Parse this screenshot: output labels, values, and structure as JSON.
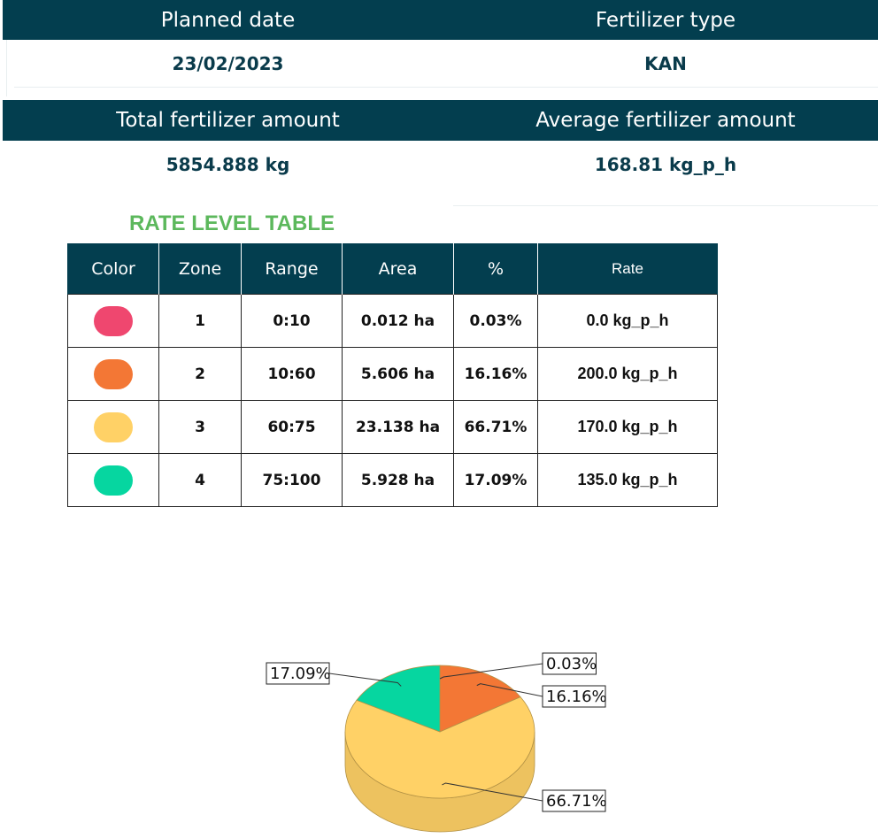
{
  "summary": {
    "planned_date_label": "Planned date",
    "planned_date_value": "23/02/2023",
    "fertilizer_type_label": "Fertilizer type",
    "fertilizer_type_value": "KAN",
    "total_amount_label": "Total fertilizer amount",
    "total_amount_value": "5854.888 kg",
    "average_amount_label": "Average fertilizer amount",
    "average_amount_value": "168.81 kg_p_h"
  },
  "rate_table": {
    "title": "RATE LEVEL TABLE",
    "headers": [
      "Color",
      "Zone",
      "Range",
      "Area",
      "%",
      "Rate"
    ],
    "rows": [
      {
        "color": "#ef476f",
        "zone": "1",
        "range": "0:10",
        "area": "0.012 ha",
        "percent": "0.03%",
        "rate": "0.0 kg_p_h"
      },
      {
        "color": "#f37735",
        "zone": "2",
        "range": "10:60",
        "area": "5.606 ha",
        "percent": "16.16%",
        "rate": "200.0 kg_p_h"
      },
      {
        "color": "#ffd166",
        "zone": "3",
        "range": "60:75",
        "area": "23.138 ha",
        "percent": "66.71%",
        "rate": "170.0 kg_p_h"
      },
      {
        "color": "#06d6a0",
        "zone": "4",
        "range": "75:100",
        "area": "5.928 ha",
        "percent": "17.09%",
        "rate": "135.0 kg_p_h"
      }
    ]
  },
  "chart_data": {
    "type": "pie",
    "categories": [
      "1",
      "2",
      "3",
      "4"
    ],
    "values": [
      0.03,
      16.16,
      66.71,
      17.09
    ],
    "labels": [
      "0.03%",
      "16.16%",
      "66.71%",
      "17.09%"
    ],
    "colors": [
      "#ef476f",
      "#f37735",
      "#ffd166",
      "#06d6a0"
    ],
    "style": "3d"
  }
}
